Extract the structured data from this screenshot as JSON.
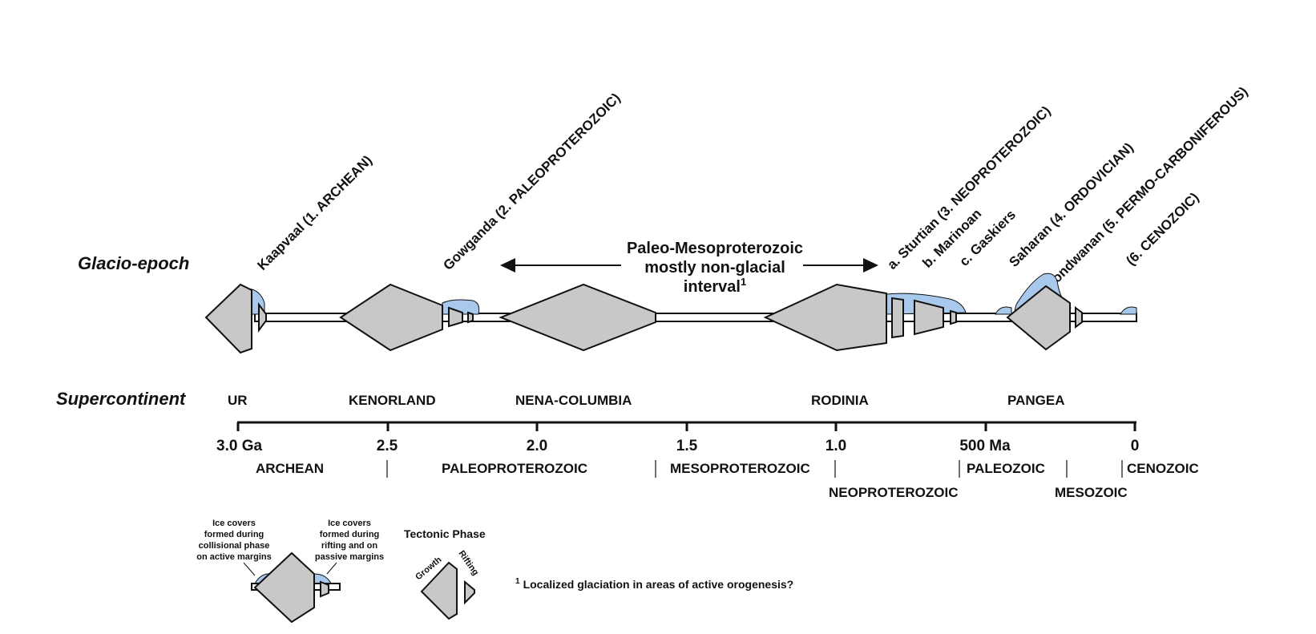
{
  "row_labels": {
    "glacio_epoch": "Glacio-epoch",
    "supercontinent": "Supercontinent"
  },
  "glaciations": [
    "Kaapvaal (1. ARCHEAN)",
    "Gowganda (2. PALEOPROTEROZOIC)",
    "a. Sturtian (3. NEOPROTEROZOIC)",
    "b. Marinoan",
    "c. Gaskiers",
    "Saharan (4. ORDOVICIAN)",
    "Gondwanan (5. PERMO-CARBONIFEROUS)",
    "(6. CENOZOIC)"
  ],
  "interval_note": {
    "line1": "Paleo-Mesoproterozoic",
    "line2": "mostly non-glacial",
    "line3": "interval",
    "marker": "1"
  },
  "supercontinents": [
    "UR",
    "KENORLAND",
    "NENA-COLUMBIA",
    "RODINIA",
    "PANGEA"
  ],
  "time_ticks": [
    "3.0 Ga",
    "2.5",
    "2.0",
    "1.5",
    "1.0",
    "500 Ma",
    "0"
  ],
  "eras": [
    "ARCHEAN",
    "PALEOPROTEROZOIC",
    "MESOPROTEROZOIC",
    "NEOPROTEROZOIC",
    "PALEOZOIC",
    "MESOZOIC",
    "CENOZOIC"
  ],
  "legend": {
    "ice_collisional": [
      "Ice covers",
      "formed during",
      "collisional phase",
      "on active margins"
    ],
    "ice_rifting": [
      "Ice covers",
      "formed during",
      "rifting and on",
      "passive margins"
    ],
    "tectonic_phase": "Tectonic Phase",
    "growth": "Growth",
    "rifting": "Rifting",
    "footnote_marker": "1",
    "footnote": "Localized glaciation in areas of active orogenesis?"
  },
  "colors": {
    "continent": "#c8c8c8",
    "ice": "#a8c8ec",
    "ink": "#111111"
  }
}
